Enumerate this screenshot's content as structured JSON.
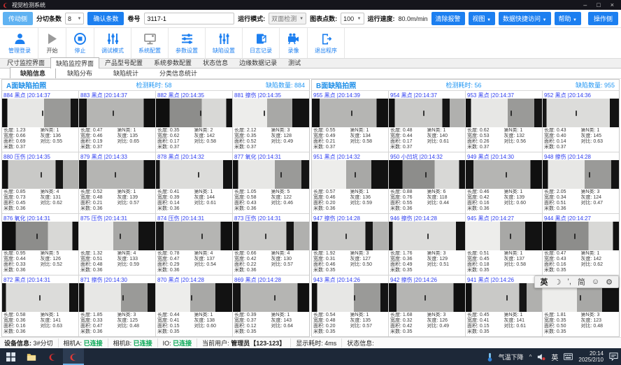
{
  "window": {
    "title": "视觉检测系统",
    "minimize": "–",
    "maximize": "□",
    "close": "×"
  },
  "toolbar1": {
    "drive_side": "传动侧",
    "slit_count_label": "分切条数",
    "slit_count": "8",
    "confirm": "确认条数",
    "roll_label": "卷号",
    "roll": "3117-1",
    "run_mode_label": "运行模式:",
    "run_mode": "双面检测",
    "points_label": "图表点数:",
    "points": "100",
    "speed_label": "运行速度:",
    "speed": "80.0m/min",
    "clear_alarm": "清除报警",
    "view": "视图",
    "quick_access": "数据快捷访问",
    "help": "帮助",
    "operate_side": "操作侧"
  },
  "actions": [
    {
      "label": "管理登录",
      "icon": "user-icon",
      "disabled": false
    },
    {
      "label": "开始",
      "icon": "play-icon",
      "disabled": true
    },
    {
      "label": "停止",
      "icon": "stop-icon",
      "disabled": false
    },
    {
      "label": "调试模式",
      "icon": "sliders-vertical-icon",
      "disabled": false
    },
    {
      "label": "系统配置",
      "icon": "monitor-icon",
      "disabled": false
    },
    {
      "label": "参数设置",
      "icon": "sliders-horizontal-icon",
      "disabled": false
    },
    {
      "label": "缺陷设置",
      "icon": "equalizer-icon",
      "disabled": false
    },
    {
      "label": "日志记录",
      "icon": "log-icon",
      "disabled": false
    },
    {
      "label": "录像",
      "icon": "camera-icon",
      "disabled": false
    },
    {
      "label": "退出程序",
      "icon": "exit-icon",
      "disabled": false
    }
  ],
  "main_tabs": {
    "items": [
      "尺寸监控界面",
      "缺陷监控界面",
      "产品型号配置",
      "系统参数配置",
      "状态信息",
      "边缘数据记录",
      "测试"
    ],
    "active": 1
  },
  "sub_tabs": {
    "items": [
      "缺陷信息",
      "缺陷分布",
      "缺陷统计",
      "分类信息统计"
    ],
    "active": 0
  },
  "cell_labels": {
    "length": "长度:",
    "width": "宽度:",
    "area": "面积:",
    "meters": "米数:",
    "cls": "第N类:",
    "gray": "灰度:",
    "contrast": "对比:"
  },
  "panels": [
    {
      "title": "A面缺陷拍照",
      "time_label": "检测耗时:",
      "time": "58",
      "count_label": "缺陷数量:",
      "count": "884",
      "cells": [
        {
          "id": "884",
          "type": "黑点",
          "time": "20:14:37",
          "l": "1.23",
          "w": "0.66",
          "a": "0.69",
          "m": "0.37",
          "c": "1",
          "g": "136",
          "k": "0.55",
          "p": 0,
          "x": 52
        },
        {
          "id": "883",
          "type": "黑点",
          "time": "20:14:37",
          "l": "0.47",
          "w": "0.46",
          "a": "0.19",
          "m": "0.37",
          "c": "1",
          "g": "135",
          "k": "0.65",
          "p": 1,
          "x": 44
        },
        {
          "id": "882",
          "type": "黑点",
          "time": "20:14:35",
          "l": "0.35",
          "w": "0.62",
          "a": "0.17",
          "m": "0.37",
          "c": "2",
          "g": "142",
          "k": "0.58",
          "p": 3,
          "x": 58
        },
        {
          "id": "881",
          "type": "擦伤",
          "time": "20:14:35",
          "l": "2.12",
          "w": "0.35",
          "a": "0.52",
          "m": "0.37",
          "c": "3",
          "g": "128",
          "k": "0.49",
          "p": 2,
          "x": 40
        },
        {
          "id": "880",
          "type": "压伤",
          "time": "20:14:35",
          "l": "0.85",
          "w": "0.73",
          "a": "0.45",
          "m": "0.36",
          "c": "4",
          "g": "131",
          "k": "0.62",
          "p": 4,
          "x": 50
        },
        {
          "id": "879",
          "type": "黑点",
          "time": "20:14:33",
          "l": "0.52",
          "w": "0.48",
          "a": "0.21",
          "m": "0.36",
          "c": "1",
          "g": "139",
          "k": "0.57",
          "p": 1,
          "x": 47
        },
        {
          "id": "878",
          "type": "黑点",
          "time": "20:14:32",
          "l": "0.41",
          "w": "0.39",
          "a": "0.14",
          "m": "0.36",
          "c": "1",
          "g": "144",
          "k": "0.61",
          "p": 5,
          "x": 55
        },
        {
          "id": "877",
          "type": "氧化",
          "time": "20:14:31",
          "l": "1.05",
          "w": "0.58",
          "a": "0.43",
          "m": "0.36",
          "c": "5",
          "g": "122",
          "k": "0.46",
          "p": 0,
          "x": 62
        },
        {
          "id": "876",
          "type": "氧化",
          "time": "20:14:31",
          "l": "0.95",
          "w": "0.44",
          "a": "0.33",
          "m": "0.36",
          "c": "5",
          "g": "126",
          "k": "0.52",
          "p": 3,
          "x": 45
        },
        {
          "id": "875",
          "type": "压伤",
          "time": "20:14:31",
          "l": "1.32",
          "w": "0.51",
          "a": "0.48",
          "m": "0.36",
          "c": "4",
          "g": "133",
          "k": "0.59",
          "p": 2,
          "x": 53
        },
        {
          "id": "874",
          "type": "压伤",
          "time": "20:14:31",
          "l": "0.78",
          "w": "0.47",
          "a": "0.29",
          "m": "0.36",
          "c": "4",
          "g": "137",
          "k": "0.54",
          "p": 1,
          "x": 60
        },
        {
          "id": "873",
          "type": "压伤",
          "time": "20:14:31",
          "l": "0.66",
          "w": "0.42",
          "a": "0.22",
          "m": "0.36",
          "c": "4",
          "g": "130",
          "k": "0.57",
          "p": 4,
          "x": 42
        },
        {
          "id": "872",
          "type": "黑点",
          "time": "20:14:31",
          "l": "0.58",
          "w": "0.36",
          "a": "0.16",
          "m": "0.36",
          "c": "1",
          "g": "141",
          "k": "0.63",
          "p": 5,
          "x": 49
        },
        {
          "id": "871",
          "type": "擦伤",
          "time": "20:14:30",
          "l": "1.85",
          "w": "0.33",
          "a": "0.47",
          "m": "0.36",
          "c": "3",
          "g": "125",
          "k": "0.48",
          "p": 0,
          "x": 57
        },
        {
          "id": "870",
          "type": "黑点",
          "time": "20:14:28",
          "l": "0.44",
          "w": "0.41",
          "a": "0.15",
          "m": "0.35",
          "c": "1",
          "g": "138",
          "k": "0.60",
          "p": 2,
          "x": 46
        },
        {
          "id": "869",
          "type": "黑点",
          "time": "20:14:28",
          "l": "0.39",
          "w": "0.37",
          "a": "0.12",
          "m": "0.35",
          "c": "1",
          "g": "143",
          "k": "0.64",
          "p": 1,
          "x": 54
        }
      ]
    },
    {
      "title": "B面缺陷拍照",
      "time_label": "检测耗时:",
      "time": "56",
      "count_label": "缺陷数量:",
      "count": "955",
      "cells": [
        {
          "id": "955",
          "type": "黑点",
          "time": "20:14:39",
          "l": "0.55",
          "w": "0.49",
          "a": "0.21",
          "m": "0.37",
          "c": "1",
          "g": "134",
          "k": "0.58",
          "p": 1,
          "x": 51
        },
        {
          "id": "954",
          "type": "黑点",
          "time": "20:14:37",
          "l": "0.48",
          "w": "0.44",
          "a": "0.17",
          "m": "0.37",
          "c": "1",
          "g": "140",
          "k": "0.61",
          "p": 4,
          "x": 45
        },
        {
          "id": "953",
          "type": "黑点",
          "time": "20:14:37",
          "l": "0.62",
          "w": "0.53",
          "a": "0.26",
          "m": "0.37",
          "c": "1",
          "g": "132",
          "k": "0.56",
          "p": 0,
          "x": 59
        },
        {
          "id": "952",
          "type": "黑点",
          "time": "20:14:36",
          "l": "0.43",
          "w": "0.40",
          "a": "0.14",
          "m": "0.37",
          "c": "1",
          "g": "145",
          "k": "0.63",
          "p": 5,
          "x": 43
        },
        {
          "id": "951",
          "type": "黑点",
          "time": "20:14:32",
          "l": "0.57",
          "w": "0.46",
          "a": "0.20",
          "m": "0.36",
          "c": "1",
          "g": "136",
          "k": "0.59",
          "p": 2,
          "x": 56
        },
        {
          "id": "950",
          "type": "小凹坑",
          "time": "20:14:32",
          "l": "0.88",
          "w": "0.76",
          "a": "0.55",
          "m": "0.36",
          "c": "6",
          "g": "118",
          "k": "0.44",
          "p": 3,
          "x": 48
        },
        {
          "id": "949",
          "type": "黑点",
          "time": "20:14:30",
          "l": "0.46",
          "w": "0.42",
          "a": "0.16",
          "m": "0.36",
          "c": "1",
          "g": "139",
          "k": "0.60",
          "p": 1,
          "x": 52
        },
        {
          "id": "948",
          "type": "擦伤",
          "time": "20:14:28",
          "l": "2.05",
          "w": "0.34",
          "a": "0.51",
          "m": "0.36",
          "c": "3",
          "g": "124",
          "k": "0.47",
          "p": 0,
          "x": 61
        },
        {
          "id": "947",
          "type": "擦伤",
          "time": "20:14:28",
          "l": "1.92",
          "w": "0.31",
          "a": "0.46",
          "m": "0.35",
          "c": "3",
          "g": "127",
          "k": "0.50",
          "p": 4,
          "x": 44
        },
        {
          "id": "946",
          "type": "擦伤",
          "time": "20:14:28",
          "l": "1.76",
          "w": "0.36",
          "a": "0.49",
          "m": "0.35",
          "c": "3",
          "g": "129",
          "k": "0.51",
          "p": 5,
          "x": 50
        },
        {
          "id": "945",
          "type": "黑点",
          "time": "20:14:27",
          "l": "0.51",
          "w": "0.45",
          "a": "0.18",
          "m": "0.35",
          "c": "1",
          "g": "137",
          "k": "0.58",
          "p": 2,
          "x": 58
        },
        {
          "id": "944",
          "type": "黑点",
          "time": "20:14:27",
          "l": "0.47",
          "w": "0.43",
          "a": "0.16",
          "m": "0.35",
          "c": "1",
          "g": "142",
          "k": "0.62",
          "p": 3,
          "x": 41
        },
        {
          "id": "943",
          "type": "黑点",
          "time": "20:14:26",
          "l": "0.54",
          "w": "0.48",
          "a": "0.20",
          "m": "0.35",
          "c": "1",
          "g": "135",
          "k": "0.57",
          "p": 0,
          "x": 55
        },
        {
          "id": "942",
          "type": "擦伤",
          "time": "20:14:26",
          "l": "1.68",
          "w": "0.32",
          "a": "0.42",
          "m": "0.35",
          "c": "3",
          "g": "126",
          "k": "0.49",
          "p": 1,
          "x": 47
        },
        {
          "id": "941",
          "type": "黑点",
          "time": "20:14:26",
          "l": "0.45",
          "w": "0.41",
          "a": "0.15",
          "m": "0.35",
          "c": "1",
          "g": "141",
          "k": "0.61",
          "p": 4,
          "x": 53
        },
        {
          "id": "940",
          "type": "擦伤",
          "time": "20:14:26",
          "l": "1.81",
          "w": "0.35",
          "a": "0.50",
          "m": "0.35",
          "c": "3",
          "g": "123",
          "k": "0.48",
          "p": 2,
          "x": 49
        }
      ]
    }
  ],
  "statusbar": {
    "device_label": "设备信息:",
    "device": "3#分切",
    "camA_label": "相机A:",
    "camA": "已连接",
    "camB_label": "相机B:",
    "camB": "已连接",
    "io_label": "IO:",
    "io": "已连接",
    "user_label": "当前用户:",
    "user": "管理员【123-123】",
    "display_label": "显示耗时:",
    "display": "4ms",
    "status_label": "状态信息:"
  },
  "ime": {
    "lang": "英",
    "moon": "☽",
    "punct": "’,",
    "simplified": "简",
    "emoji": "☺",
    "settings": "⚙"
  },
  "taskbar": {
    "weather": "气温下降",
    "tray_chevron": "^",
    "lang": "英",
    "time": "20:14",
    "date": "2025/2/10"
  },
  "colors": {
    "accent": "#1c7ff0",
    "cell_link": "#2e3ef0",
    "connected": "#00a651",
    "panel_blue": "#1f8fe8"
  }
}
